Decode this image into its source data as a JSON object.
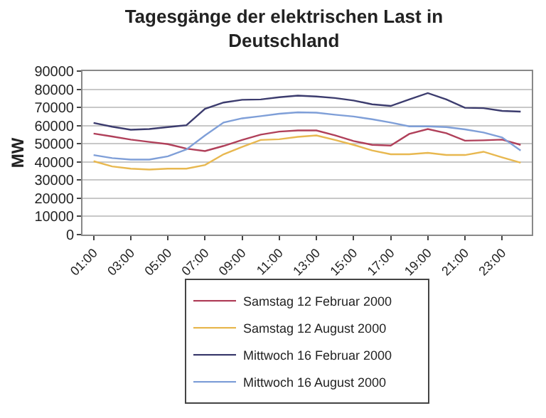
{
  "chart_data": {
    "type": "line",
    "title": "Tagesgänge der elektrischen Last in\nDeutschland",
    "ylabel": "MW",
    "categories": [
      "01:00",
      null,
      "03:00",
      null,
      "05:00",
      null,
      "07:00",
      null,
      "09:00",
      null,
      "11:00",
      null,
      "13:00",
      null,
      "15:00",
      null,
      "17:00",
      null,
      "19:00",
      null,
      "21:00",
      null,
      "23:00",
      null
    ],
    "series": [
      {
        "name": "Samstag 12 Februar 2000",
        "color": "#b0405a",
        "values": [
          55600,
          54000,
          52300,
          51000,
          49800,
          47300,
          46000,
          48800,
          52100,
          55000,
          56700,
          57300,
          57300,
          54600,
          51500,
          49400,
          49000,
          55400,
          58100,
          55800,
          51700,
          51900,
          52300,
          49400
        ]
      },
      {
        "name": "Samstag 12 August 2000",
        "color": "#e8b850",
        "values": [
          40400,
          37500,
          36300,
          35800,
          36300,
          36300,
          38300,
          44200,
          48300,
          52100,
          52500,
          53800,
          54600,
          52100,
          49400,
          46300,
          44200,
          44200,
          45000,
          43800,
          43800,
          45600,
          42500,
          39600
        ]
      },
      {
        "name": "Mittwoch 16 Februar 2000",
        "color": "#3c3c6e",
        "values": [
          61500,
          59400,
          57700,
          58100,
          59200,
          60200,
          69200,
          72700,
          74200,
          74400,
          75600,
          76500,
          76000,
          75200,
          73800,
          71700,
          70800,
          74400,
          77900,
          74400,
          69800,
          69600,
          68100,
          67700
        ]
      },
      {
        "name": "Mittwoch 16 August 2000",
        "color": "#7f9fd8",
        "values": [
          43800,
          42100,
          41300,
          41300,
          43100,
          46900,
          54600,
          61700,
          64000,
          65200,
          66500,
          67300,
          67100,
          66000,
          65000,
          63500,
          61700,
          59600,
          59600,
          59200,
          57900,
          56200,
          53500,
          46300
        ]
      }
    ],
    "ylim": [
      0,
      90000
    ],
    "yticks": [
      0,
      10000,
      20000,
      30000,
      40000,
      50000,
      60000,
      70000,
      80000,
      90000
    ],
    "grid": "y",
    "legend": "bottom",
    "marker": "none",
    "line_style": "solid"
  }
}
